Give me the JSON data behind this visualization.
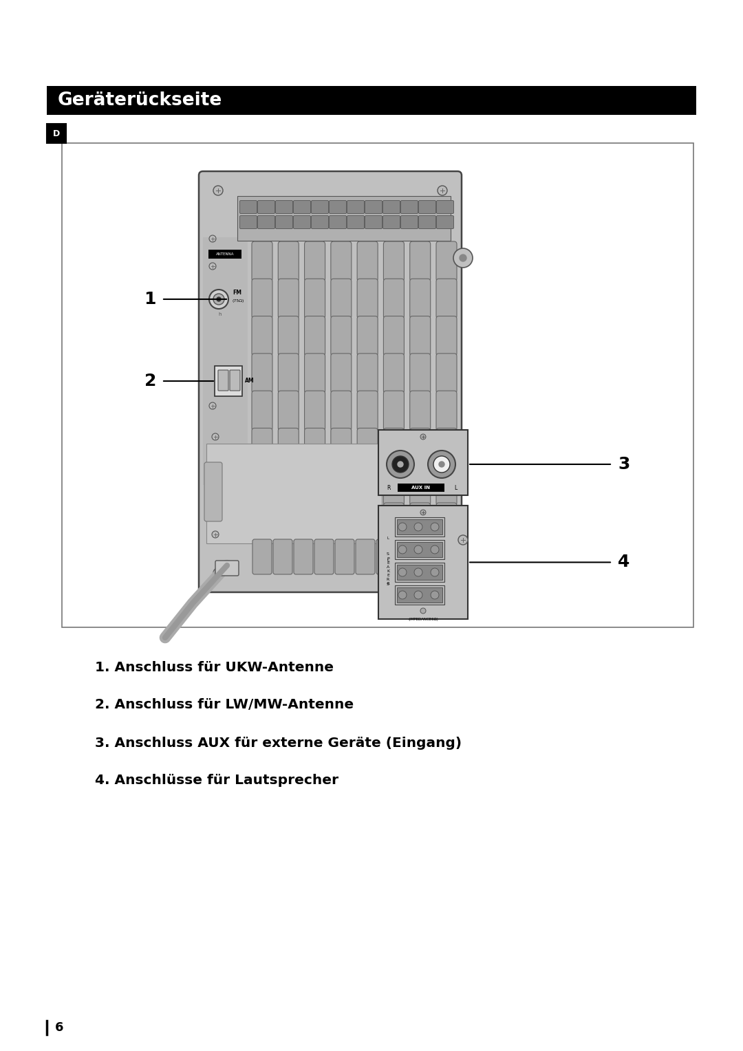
{
  "title": "Geräterückseite",
  "title_bg": "#000000",
  "title_color": "#ffffff",
  "title_fontsize": 19,
  "page_bg": "#ffffff",
  "section_label": "D",
  "items": [
    "1. Anschluss für UKW-Antenne",
    "2. Anschluss für LW/MW-Antenne",
    "3. Anschluss AUX für externe Geräte (Eingang)",
    "4. Anschlüsse für Lautsprecher"
  ],
  "item_fontsize": 14.5,
  "page_number": "6",
  "fig_width": 10.8,
  "fig_height": 15.28,
  "dpi": 100,
  "device_color": "#c0c0c0",
  "device_dark": "#aaaaaa",
  "device_edge": "#444444",
  "slot_color": "#aaaaaa",
  "slot_edge": "#666666"
}
